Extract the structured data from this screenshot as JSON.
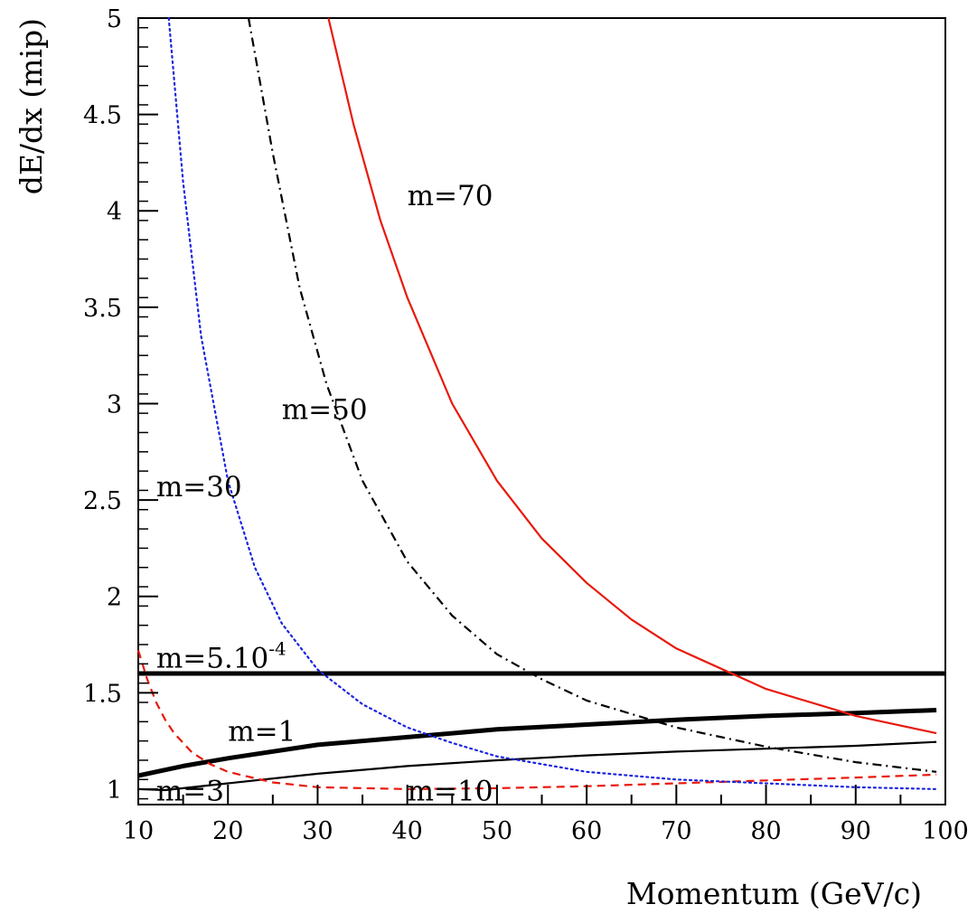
{
  "chart_data": {
    "type": "line",
    "title": "",
    "xlabel": "Momentum (GeV/c)",
    "ylabel": "dE/dx (mip)",
    "xlim": [
      10,
      100
    ],
    "ylim": [
      0.92,
      5
    ],
    "x_ticks": [
      10,
      20,
      30,
      40,
      50,
      60,
      70,
      80,
      90,
      100
    ],
    "y_ticks": [
      1,
      1.5,
      2,
      2.5,
      3,
      3.5,
      4,
      4.5,
      5
    ],
    "x_tick_labels": [
      "10",
      "20",
      "30",
      "40",
      "50",
      "60",
      "70",
      "80",
      "90",
      "100"
    ],
    "y_tick_labels": [
      "1",
      "1.5",
      "2",
      "2.5",
      "3",
      "3.5",
      "4",
      "4.5",
      "5"
    ],
    "grid": false,
    "legend": "none",
    "series": [
      {
        "name": "m=5.10-4",
        "label_base": "m=5.10",
        "label_sup": "-4",
        "label_at": [
          12,
          1.63
        ],
        "color": "#000000",
        "style": "solid",
        "weight": "thick",
        "x": [
          10,
          100
        ],
        "y": [
          1.6,
          1.6
        ]
      },
      {
        "name": "m=1",
        "label_at": [
          20,
          1.25
        ],
        "color": "#000000",
        "style": "solid",
        "weight": "thick",
        "x": [
          10,
          15,
          20,
          30,
          40,
          50,
          60,
          70,
          80,
          90,
          99
        ],
        "y": [
          1.07,
          1.12,
          1.16,
          1.23,
          1.27,
          1.31,
          1.335,
          1.36,
          1.38,
          1.395,
          1.41
        ]
      },
      {
        "name": "m=3",
        "label_at": [
          12,
          0.94
        ],
        "color": "#000000",
        "style": "solid",
        "weight": "thin",
        "x": [
          10,
          13,
          20,
          30,
          40,
          50,
          60,
          70,
          80,
          90,
          99
        ],
        "y": [
          1.0,
          0.995,
          1.03,
          1.08,
          1.12,
          1.15,
          1.175,
          1.195,
          1.21,
          1.225,
          1.245
        ]
      },
      {
        "name": "m=10",
        "label_at": [
          40,
          0.94
        ],
        "color": "#e8190c",
        "style": "dashed",
        "weight": "thin",
        "x": [
          10,
          11,
          12,
          13,
          14,
          16,
          18,
          20,
          25,
          30,
          40,
          50,
          60,
          70,
          80,
          90,
          99
        ],
        "y": [
          1.72,
          1.57,
          1.45,
          1.36,
          1.29,
          1.19,
          1.13,
          1.09,
          1.035,
          1.01,
          1.0,
          1.005,
          1.015,
          1.03,
          1.045,
          1.06,
          1.075
        ]
      },
      {
        "name": "m=30",
        "label_at": [
          12,
          2.52
        ],
        "color": "#1a25e0",
        "style": "dotted",
        "weight": "thin",
        "x": [
          13.4,
          15,
          17,
          20,
          23,
          26,
          30,
          35,
          40,
          45,
          50,
          60,
          70,
          80,
          90,
          99
        ],
        "y": [
          5.0,
          4.15,
          3.35,
          2.6,
          2.15,
          1.86,
          1.62,
          1.44,
          1.32,
          1.24,
          1.17,
          1.09,
          1.05,
          1.03,
          1.01,
          1.0
        ]
      },
      {
        "name": "m=50",
        "label_at": [
          26,
          2.92
        ],
        "color": "#000000",
        "style": "dashdot",
        "weight": "thin",
        "x": [
          22.3,
          25,
          28,
          31,
          35,
          40,
          45,
          50,
          55,
          60,
          70,
          80,
          90,
          99
        ],
        "y": [
          5.0,
          4.3,
          3.6,
          3.1,
          2.6,
          2.18,
          1.9,
          1.7,
          1.57,
          1.46,
          1.32,
          1.22,
          1.14,
          1.09
        ]
      },
      {
        "name": "m=70",
        "label_at": [
          40,
          4.03
        ],
        "color": "#e8190c",
        "style": "solid",
        "weight": "thin",
        "x": [
          31.2,
          34,
          37,
          40,
          45,
          50,
          55,
          60,
          65,
          70,
          80,
          90,
          99
        ],
        "y": [
          5.0,
          4.45,
          3.95,
          3.55,
          3.0,
          2.6,
          2.3,
          2.07,
          1.88,
          1.73,
          1.52,
          1.38,
          1.29
        ]
      }
    ]
  }
}
